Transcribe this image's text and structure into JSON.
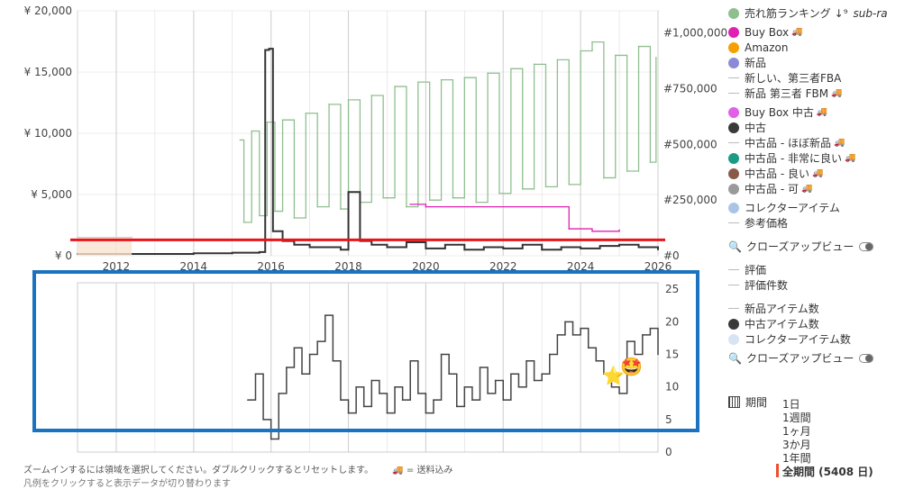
{
  "chart_data": [
    {
      "type": "line",
      "title": "",
      "x_range": [
        2011.0,
        2026.0
      ],
      "x_ticks": [
        "2012",
        "2014",
        "2016",
        "2018",
        "2020",
        "2022",
        "2024",
        "2026"
      ],
      "y_left_ticks": [
        "¥ 0",
        "¥ 5,000",
        "¥ 10,000",
        "¥ 15,000",
        "¥ 20,000"
      ],
      "y_left_range": [
        0,
        20000
      ],
      "y_right_ticks": [
        "#0",
        "#250,000",
        "#500,000",
        "#750,000",
        "#1,000,000"
      ],
      "y_right_range": [
        0,
        1100000
      ],
      "series": [
        {
          "name": "売れ筋ランキング",
          "axis": "right",
          "color": "#8fbf8f",
          "x": [
            2015.2,
            2015.3,
            2015.5,
            2015.7,
            2015.9,
            2016.1,
            2016.3,
            2016.6,
            2016.9,
            2017.2,
            2017.5,
            2017.8,
            2018.0,
            2018.3,
            2018.6,
            2018.9,
            2019.2,
            2019.5,
            2019.8,
            2020.1,
            2020.4,
            2020.7,
            2021.0,
            2021.3,
            2021.6,
            2021.9,
            2022.2,
            2022.5,
            2022.8,
            2023.1,
            2023.4,
            2023.7,
            2024.0,
            2024.3,
            2024.6,
            2024.9,
            2025.2,
            2025.5,
            2025.8,
            2025.95
          ],
          "y": [
            520000,
            150000,
            560000,
            180000,
            600000,
            200000,
            610000,
            170000,
            640000,
            220000,
            680000,
            210000,
            700000,
            240000,
            720000,
            260000,
            760000,
            220000,
            780000,
            250000,
            790000,
            260000,
            800000,
            240000,
            820000,
            280000,
            840000,
            300000,
            860000,
            310000,
            880000,
            320000,
            920000,
            960000,
            350000,
            900000,
            380000,
            940000,
            420000,
            890000
          ]
        },
        {
          "name": "Buy Box",
          "axis": "left",
          "color": "#e020b0",
          "x": [
            2019.6,
            2020.0,
            2023.7,
            2024.3,
            2025.0
          ],
          "y": [
            4200,
            4000,
            2200,
            2000,
            2100
          ]
        },
        {
          "name": "中古",
          "axis": "left",
          "color": "#333333",
          "x": [
            2011.0,
            2014.0,
            2015.0,
            2015.7,
            2015.85,
            2015.95,
            2016.05,
            2016.3,
            2016.6,
            2017.0,
            2017.8,
            2018.0,
            2018.3,
            2018.6,
            2019.0,
            2019.5,
            2020.0,
            2020.5,
            2021.0,
            2021.5,
            2022.0,
            2022.5,
            2023.0,
            2023.5,
            2024.0,
            2024.5,
            2025.0,
            2025.5,
            2026.0
          ],
          "y": [
            150,
            200,
            250,
            300,
            16800,
            16900,
            2000,
            1200,
            900,
            700,
            500,
            5200,
            1200,
            900,
            700,
            1100,
            600,
            900,
            500,
            700,
            600,
            900,
            500,
            700,
            600,
            800,
            900,
            700,
            500
          ]
        },
        {
          "name": "コレクターアイテム",
          "axis": "left",
          "color": "#aac4e8",
          "x": [
            2011.0,
            2012.4
          ],
          "y": [
            1500,
            1500
          ]
        }
      ],
      "annotation_line_y": 1300
    },
    {
      "type": "line",
      "title": "",
      "x_range": [
        2011.0,
        2026.0
      ],
      "y_right_ticks": [
        "0",
        "5",
        "10",
        "15",
        "20",
        "25"
      ],
      "y_range": [
        0,
        26
      ],
      "series": [
        {
          "name": "中古アイテム数",
          "color": "#444444",
          "x": [
            2015.4,
            2015.6,
            2015.8,
            2016.0,
            2016.2,
            2016.4,
            2016.6,
            2016.8,
            2017.0,
            2017.2,
            2017.4,
            2017.6,
            2017.8,
            2018.0,
            2018.2,
            2018.4,
            2018.6,
            2018.8,
            2019.0,
            2019.2,
            2019.4,
            2019.6,
            2019.8,
            2020.0,
            2020.2,
            2020.4,
            2020.6,
            2020.8,
            2021.0,
            2021.2,
            2021.4,
            2021.6,
            2021.8,
            2022.0,
            2022.2,
            2022.4,
            2022.6,
            2022.8,
            2023.0,
            2023.2,
            2023.4,
            2023.6,
            2023.8,
            2024.0,
            2024.2,
            2024.4,
            2024.6,
            2024.8,
            2025.0,
            2025.2,
            2025.4,
            2025.6,
            2025.8,
            2026.0
          ],
          "y": [
            8,
            12,
            5,
            2,
            9,
            13,
            16,
            12,
            15,
            17,
            21,
            14,
            8,
            6,
            10,
            7,
            11,
            9,
            6,
            10,
            8,
            14,
            9,
            6,
            8,
            15,
            12,
            7,
            10,
            8,
            13,
            9,
            11,
            8,
            12,
            10,
            14,
            11,
            12,
            15,
            18,
            20,
            18,
            19,
            16,
            14,
            12,
            10,
            9,
            17,
            15,
            18,
            19,
            15
          ]
        }
      ]
    }
  ],
  "legend": {
    "items": [
      {
        "label": "売れ筋ランキング",
        "color": "#8fbf8f",
        "kind": "dot",
        "suffix": "↓⁹",
        "extra": "sub-ra"
      },
      {
        "label": "Buy Box",
        "color": "#e020b0",
        "kind": "dot",
        "truck": "🚚"
      },
      {
        "label": "Amazon",
        "color": "#f5a000",
        "kind": "dot"
      },
      {
        "label": "新品",
        "color": "#8a8ad6",
        "kind": "dot"
      },
      {
        "label": "新しい、第三者FBA",
        "kind": "dash"
      },
      {
        "label": "新品 第三者 FBM",
        "kind": "dash",
        "truck": "🚚"
      },
      {
        "label": "Buy Box 中古",
        "color": "#e060e8",
        "kind": "dot",
        "truck": "🚚"
      },
      {
        "label": "中古",
        "color": "#3a3a3a",
        "kind": "dot"
      },
      {
        "label": "中古品 - ほぼ新品",
        "kind": "dash",
        "truck": "🚚"
      },
      {
        "label": "中古品 - 非常に良い",
        "color": "#1a9c84",
        "kind": "dot",
        "truck": "🚚"
      },
      {
        "label": "中古品 - 良い",
        "color": "#8a5a48",
        "kind": "dot",
        "truck": "🚚"
      },
      {
        "label": "中古品 - 可",
        "color": "#9a9a9a",
        "kind": "dot",
        "truck": "🚚"
      },
      {
        "label": "コレクターアイテム",
        "color": "#aac4e8",
        "kind": "dot"
      },
      {
        "label": "参考価格",
        "kind": "dash"
      }
    ],
    "zoom_label_1": "クローズアップビュー",
    "items2": [
      {
        "label": "評価",
        "kind": "dash"
      },
      {
        "label": "評価件数",
        "kind": "dash"
      },
      {
        "label": "新品アイテム数",
        "kind": "dash"
      },
      {
        "label": "中古アイテム数",
        "color": "#3a3a3a",
        "kind": "dot"
      },
      {
        "label": "コレクターアイテム数",
        "color": "#d8e4f4",
        "kind": "dot"
      }
    ],
    "zoom_label_2": "クローズアップビュー",
    "period_label": "期間",
    "ranges": [
      "1日",
      "1週間",
      "1ヶ月",
      "3か月",
      "1年間"
    ],
    "selected_range": "全期間 (5408 日)"
  },
  "footer": {
    "hint": "ズームインするには領域を選択してください。ダブルクリックするとリセットします。",
    "shipping": "🚚 = 送料込み",
    "hint2": "凡例をクリックすると表示データが切り替わります"
  },
  "colors": {
    "red_line": "#e8141c",
    "blue_box": "#1a73c0"
  }
}
